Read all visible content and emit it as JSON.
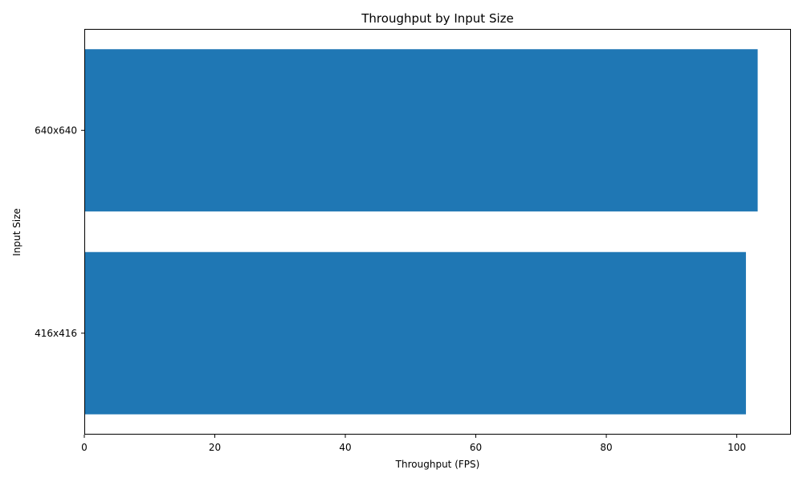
{
  "chart_data": {
    "type": "bar",
    "orientation": "horizontal",
    "title": "Throughput by Input Size",
    "xlabel": "Throughput (FPS)",
    "ylabel": "Input Size",
    "categories": [
      "416x416",
      "640x640"
    ],
    "values": [
      101.4,
      103.2
    ],
    "xlim": [
      0,
      108.3
    ],
    "xticks": [
      0,
      20,
      40,
      60,
      80,
      100
    ],
    "grid": false,
    "bar_color": "#1f77b4"
  }
}
